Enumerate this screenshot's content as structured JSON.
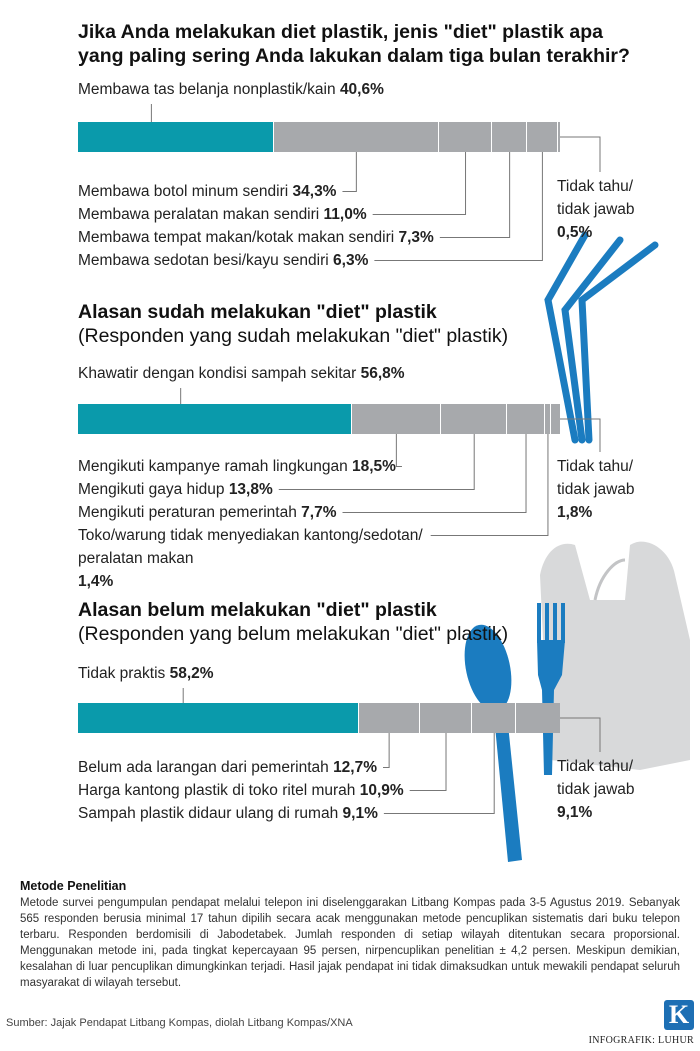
{
  "colors": {
    "main": "#0a9aab",
    "rest": "#a7a9ac",
    "accent": "#1b7cc0",
    "bag": "#d8d9da"
  },
  "chart_data": [
    {
      "type": "bar",
      "orientation": "horizontal-stacked",
      "title": "Jika Anda melakukan diet plastik, jenis \"diet\" plastik apa yang paling sering Anda lakukan dalam tiga bulan terakhir?",
      "subtitle": "",
      "segments": [
        {
          "label": "Membawa tas belanja nonplastik/kain",
          "value": 40.6,
          "value_text": "40,6%"
        },
        {
          "label": "Membawa botol minum sendiri",
          "value": 34.3,
          "value_text": "34,3%"
        },
        {
          "label": "Membawa peralatan makan sendiri",
          "value": 11.0,
          "value_text": "11,0%"
        },
        {
          "label": "Membawa tempat makan/kotak makan sendiri",
          "value": 7.3,
          "value_text": "7,3%"
        },
        {
          "label": "Membawa sedotan besi/kayu sendiri",
          "value": 6.3,
          "value_text": "6,3%"
        },
        {
          "label": "Tidak tahu/ tidak jawab",
          "value": 0.5,
          "value_text": "0,5%"
        }
      ]
    },
    {
      "type": "bar",
      "orientation": "horizontal-stacked",
      "title": "Alasan sudah melakukan \"diet\" plastik",
      "subtitle": "(Responden yang sudah melakukan \"diet\" plastik)",
      "segments": [
        {
          "label": "Khawatir dengan kondisi sampah sekitar",
          "value": 56.8,
          "value_text": "56,8%"
        },
        {
          "label": "Mengikuti kampanye ramah lingkungan",
          "value": 18.5,
          "value_text": "18,5%"
        },
        {
          "label": "Mengikuti gaya hidup",
          "value": 13.8,
          "value_text": "13,8%"
        },
        {
          "label": "Mengikuti peraturan pemerintah",
          "value": 7.7,
          "value_text": "7,7%"
        },
        {
          "label": "Toko/warung tidak menyediakan kantong/sedotan/ peralatan makan",
          "value": 1.4,
          "value_text": "1,4%"
        },
        {
          "label": "Tidak tahu/ tidak jawab",
          "value": 1.8,
          "value_text": "1,8%"
        }
      ]
    },
    {
      "type": "bar",
      "orientation": "horizontal-stacked",
      "title": "Alasan belum melakukan \"diet\" plastik",
      "subtitle": "(Responden yang belum melakukan \"diet\" plastik)",
      "segments": [
        {
          "label": "Tidak praktis",
          "value": 58.2,
          "value_text": "58,2%"
        },
        {
          "label": "Belum ada larangan dari pemerintah",
          "value": 12.7,
          "value_text": "12,7%"
        },
        {
          "label": "Harga kantong plastik di toko ritel murah",
          "value": 10.9,
          "value_text": "10,9%"
        },
        {
          "label": "Sampah plastik didaur ulang di rumah",
          "value": 9.1,
          "value_text": "9,1%"
        },
        {
          "label": "Tidak tahu/ tidak jawab",
          "value": 9.1,
          "value_text": "9,1%"
        }
      ]
    }
  ],
  "method": {
    "heading": "Metode Penelitian",
    "text": "Metode survei pengumpulan pendapat melalui telepon ini diselenggarakan Litbang Kompas pada 3-5 Agustus 2019. Sebanyak 565 responden berusia minimal 17 tahun dipilih secara acak menggunakan metode pencuplikan sistematis dari buku telepon terbaru. Responden berdomisili di Jabodetabek. Jumlah responden di setiap wilayah ditentukan secara proporsional. Menggunakan metode ini, pada tingkat kepercayaan 95 persen, nirpencuplikan penelitian ± 4,2 persen. Meskipun demikian, kesalahan di luar pencuplikan dimungkinkan terjadi. Hasil jajak pendapat ini tidak dimaksudkan untuk mewakili pendapat seluruh masyarakat di wilayah tersebut."
  },
  "source": "Sumber: Jajak Pendapat Litbang Kompas, diolah Litbang Kompas/XNA",
  "logo": "K",
  "credit": "INFOGRAFIK: LUHUR"
}
